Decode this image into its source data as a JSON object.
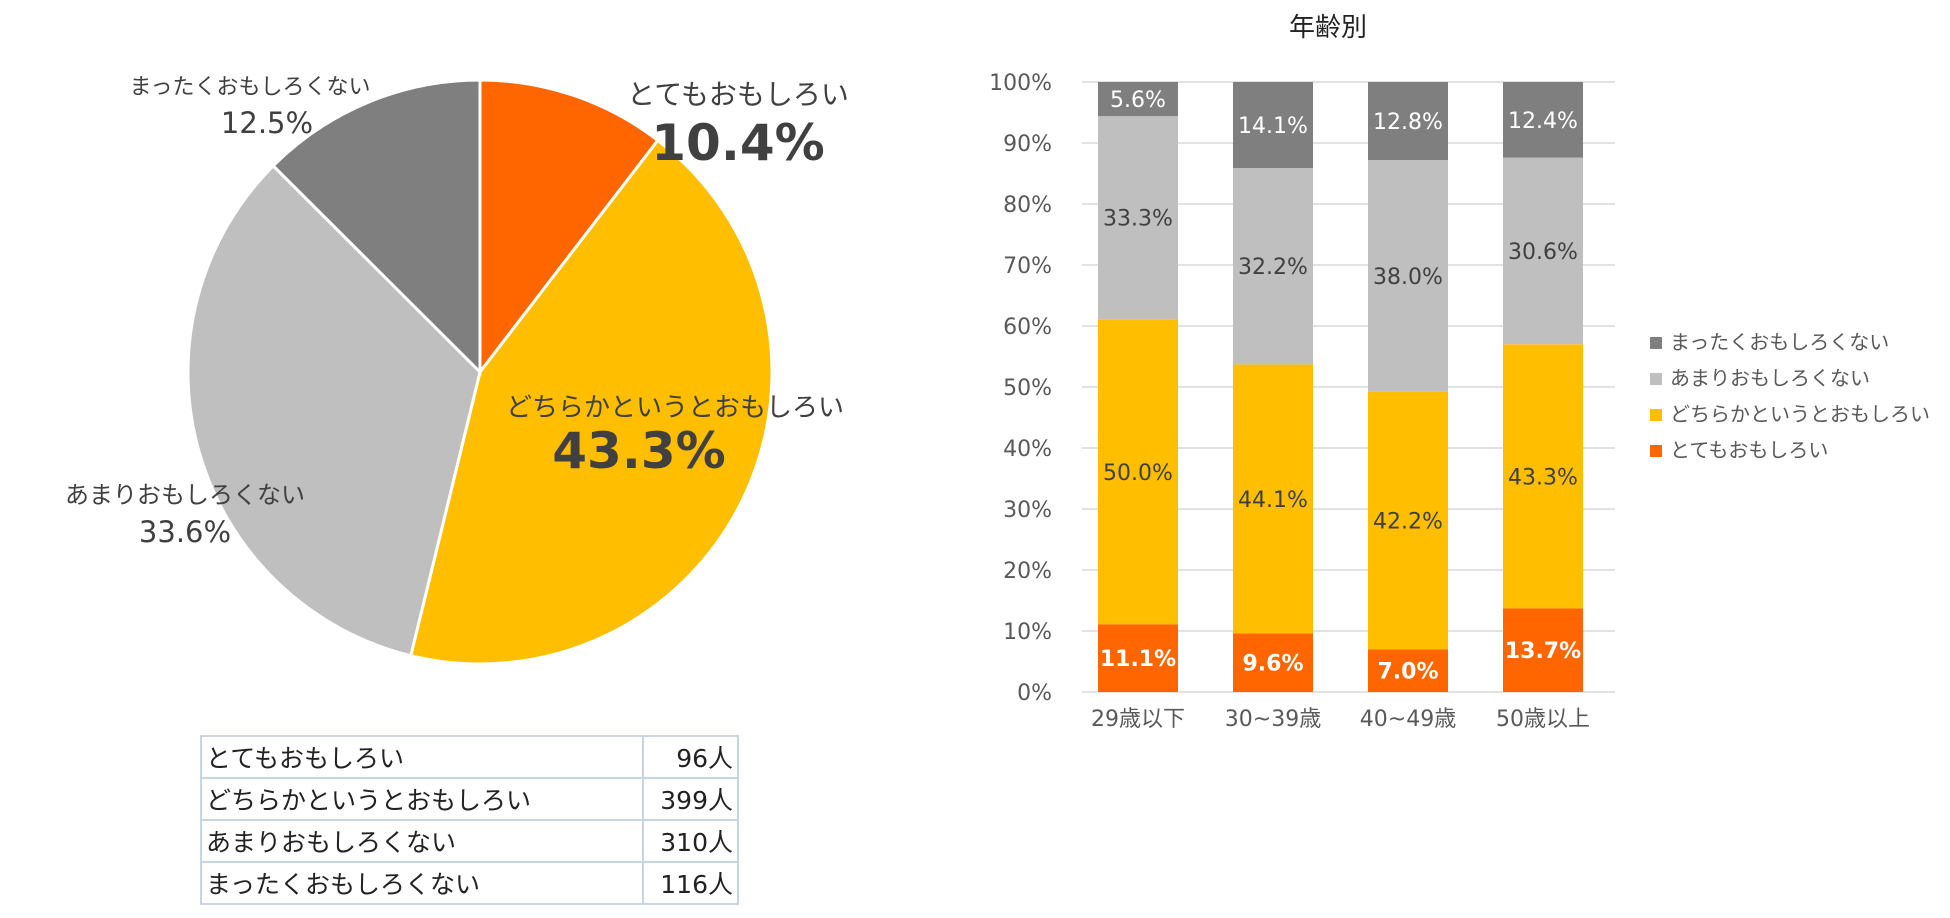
{
  "chart_data": [
    {
      "type": "pie",
      "title": "",
      "slices": [
        {
          "label": "とてもおもしろい",
          "value": 10.4,
          "display": "10.4%",
          "color": "#ff6600"
        },
        {
          "label": "どちらかというとおもしろい",
          "value": 43.3,
          "display": "43.3%",
          "color": "#ffbf00"
        },
        {
          "label": "あまりおもしろくない",
          "value": 33.6,
          "display": "33.6%",
          "color": "#bfbfbf"
        },
        {
          "label": "まったくおもしろくない",
          "value": 12.5,
          "display": "12.5%",
          "color": "#7f7f7f"
        }
      ]
    },
    {
      "type": "bar",
      "stacked": true,
      "title": "年齢別",
      "categories": [
        "29歳以下",
        "30~39歳",
        "40~49歳",
        "50歳以上"
      ],
      "ylim": [
        0,
        100
      ],
      "yticks": [
        "0%",
        "10%",
        "20%",
        "30%",
        "40%",
        "50%",
        "60%",
        "70%",
        "80%",
        "90%",
        "100%"
      ],
      "grid": true,
      "legend_position": "right",
      "series": [
        {
          "name": "とてもおもしろい",
          "color": "#ff6600",
          "values": [
            11.1,
            9.6,
            7.0,
            13.7
          ],
          "labels": [
            "11.1%",
            "9.6%",
            "7.0%",
            "13.7%"
          ]
        },
        {
          "name": "どちらかというとおもしろい",
          "color": "#ffbf00",
          "values": [
            50.0,
            44.1,
            42.2,
            43.3
          ],
          "labels": [
            "50.0%",
            "44.1%",
            "42.2%",
            "43.3%"
          ]
        },
        {
          "name": "あまりおもしろくない",
          "color": "#bfbfbf",
          "values": [
            33.3,
            32.2,
            38.0,
            30.6
          ],
          "labels": [
            "33.3%",
            "32.2%",
            "38.0%",
            "30.6%"
          ]
        },
        {
          "name": "まったくおもしろくない",
          "color": "#7f7f7f",
          "values": [
            5.6,
            14.1,
            12.8,
            12.4
          ],
          "labels": [
            "5.6%",
            "14.1%",
            "12.8%",
            "12.4%"
          ]
        }
      ]
    }
  ],
  "count_table": {
    "rows": [
      {
        "label": "とてもおもしろい",
        "count": "96人"
      },
      {
        "label": "どちらかというとおもしろい",
        "count": "399人"
      },
      {
        "label": "あまりおもしろくない",
        "count": "310人"
      },
      {
        "label": "まったくおもしろくない",
        "count": "116人"
      }
    ]
  }
}
